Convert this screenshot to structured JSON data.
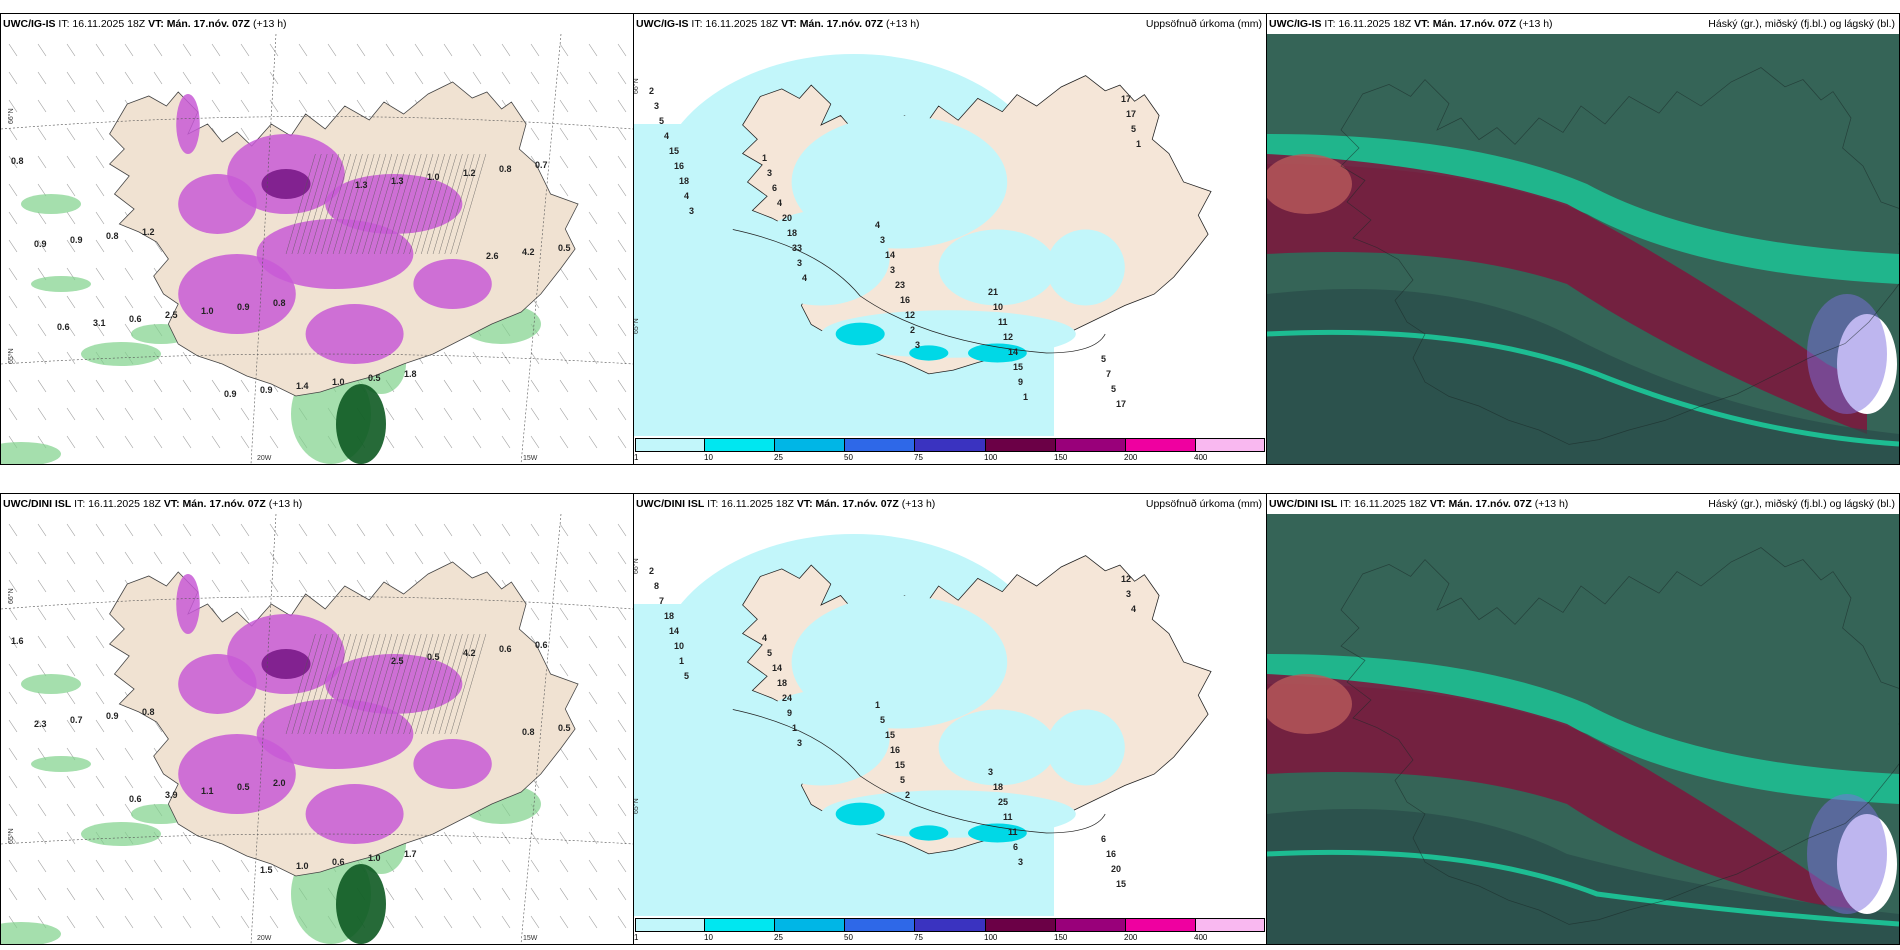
{
  "panels": [
    {
      "model": "UWC/IG-IS",
      "it": "IT: 16.11.2025 18Z",
      "vt": "VT: Mán. 17.nóv. 07Z",
      "lead": "(+13 h)",
      "right": ""
    },
    {
      "model": "UWC/IG-IS",
      "it": "IT: 16.11.2025 18Z",
      "vt": "VT: Mán. 17.nóv. 07Z",
      "lead": "(+13 h)",
      "right": "Uppsöfnuð úrkoma (mm)"
    },
    {
      "model": "UWC/IG-IS",
      "it": "IT: 16.11.2025 18Z",
      "vt": "VT: Mán. 17.nóv. 07Z",
      "lead": "(+13 h)",
      "right": "Háský (gr.), miðský (fj.bl.) og lágský (bl.)"
    },
    {
      "model": "UWC/DINI ISL",
      "it": "IT: 16.11.2025 18Z",
      "vt": "VT: Mán. 17.nóv. 07Z",
      "lead": "(+13 h)",
      "right": ""
    },
    {
      "model": "UWC/DINI ISL",
      "it": "IT: 16.11.2025 18Z",
      "vt": "VT: Mán. 17.nóv. 07Z",
      "lead": "(+13 h)",
      "right": "Uppsöfnuð úrkoma (mm)"
    },
    {
      "model": "UWC/DINI ISL",
      "it": "IT: 16.11.2025 18Z",
      "vt": "VT: Mán. 17.nóv. 07Z",
      "lead": "(+13 h)",
      "right": "Háský (gr.), miðský (fj.bl.) og lágský (bl.)"
    }
  ],
  "colorbar": {
    "colors": [
      "#c2f6fa",
      "#00e7f0",
      "#00b6e6",
      "#2e68e8",
      "#3a33c0",
      "#6b0046",
      "#99007a",
      "#ef00a0",
      "#f9b8f0"
    ],
    "labels": [
      "1",
      "10",
      "25",
      "50",
      "75",
      "100",
      "150",
      "200",
      "400"
    ]
  },
  "axis_labels": {
    "lat_66": "66°N",
    "lat_65": "65°N",
    "lat_64": "64°N",
    "lon_20": "20W",
    "lon_15": "15W"
  },
  "top_left_values": [
    "0.8",
    "1.2",
    "0.8",
    "1.8",
    "0.7",
    "0.8",
    "0.9",
    "0.5",
    "0.8",
    "0.9",
    "1.0",
    "1.0",
    "1.2",
    "0.9",
    "2.5",
    "1.4",
    "1.0",
    "0.5",
    "0.6",
    "0.9",
    "1.3",
    "4.2",
    "3.1",
    "0.9",
    "1.3",
    "2.6",
    "0.6"
  ],
  "bottom_left_values": [
    "1.6",
    "0.8",
    "2.0",
    "1.7",
    "0.6",
    "0.9",
    "0.5",
    "1.0",
    "0.6",
    "0.7",
    "1.1",
    "0.6",
    "4.2",
    "2.3",
    "3.9",
    "1.0",
    "0.5",
    "0.5",
    "0.6",
    "1.5",
    "2.5",
    "0.8"
  ],
  "top_mid_values": [
    "2",
    "1",
    "4",
    "21",
    "5",
    "3",
    "3",
    "3",
    "10",
    "7",
    "5",
    "6",
    "14",
    "11",
    "5",
    "4",
    "4",
    "3",
    "12",
    "17",
    "15",
    "20",
    "23",
    "14",
    "17",
    "16",
    "18",
    "16",
    "15",
    "17",
    "18",
    "33",
    "12",
    "9",
    "5",
    "4",
    "3",
    "2",
    "1",
    "1",
    "3",
    "4",
    "3"
  ],
  "bottom_mid_values": [
    "2",
    "4",
    "1",
    "3",
    "6",
    "8",
    "5",
    "5",
    "18",
    "16",
    "7",
    "14",
    "15",
    "25",
    "20",
    "18",
    "18",
    "16",
    "11",
    "15",
    "14",
    "24",
    "15",
    "11",
    "12",
    "10",
    "9",
    "5",
    "6",
    "3",
    "1",
    "1",
    "2",
    "3",
    "4",
    "5",
    "3"
  ]
}
